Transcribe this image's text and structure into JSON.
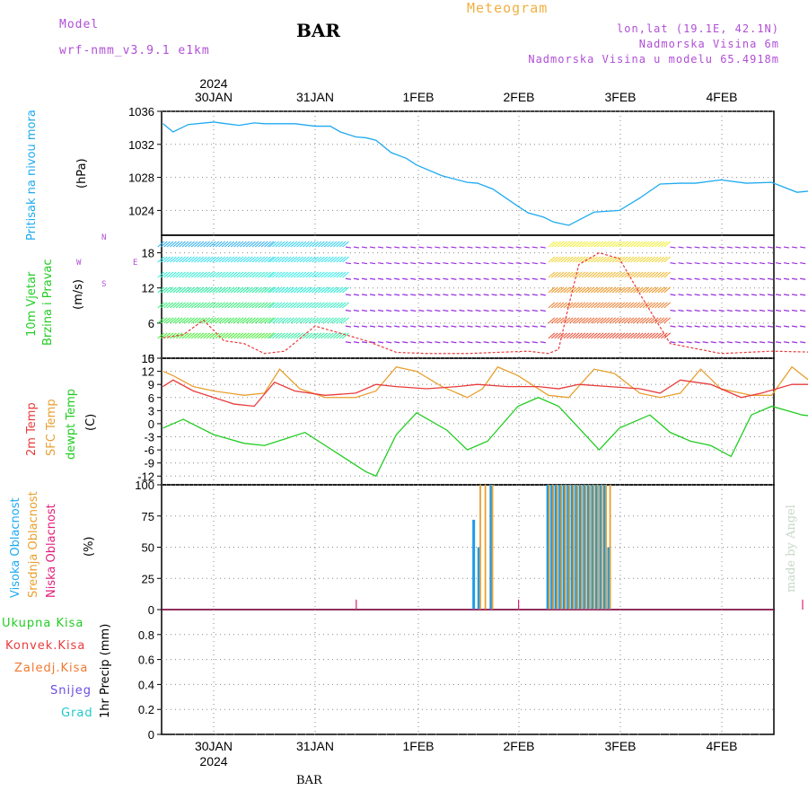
{
  "header": {
    "model_label": "Model",
    "model_name": "wrf-nmm_v3.9.1 e1km",
    "title": "BAR",
    "product": "Meteogram",
    "location": "lon,lat (19.1E, 42.1N)",
    "elevation": "Nadmorska Visina 6m",
    "model_elevation": "Nadmorska Visina u modelu 65.4918m"
  },
  "footer": {
    "station": "BAR",
    "credit": "made by Angel"
  },
  "colors": {
    "pressure": "#1eaaf0",
    "wind_label": "#22cc22",
    "temp2m": "#e83c3c",
    "sfc_temp": "#e8a030",
    "dewpoint": "#22cc22",
    "high_cloud": "#1e9be8",
    "mid_cloud": "#e8a030",
    "low_cloud": "#e0207a",
    "purple": "#b04fd6"
  },
  "chart_data": [
    {
      "type": "line",
      "title": "Pritisak na nivou mora",
      "ylabel": "(hPa)",
      "ylim": [
        1021,
        1036
      ],
      "yticks": [
        1024,
        1028,
        1032,
        1036
      ],
      "grid": true,
      "top_axis_year": "2024",
      "x_tick_labels": [
        "30JAN",
        "31JAN",
        "1FEB",
        "2FEB",
        "3FEB",
        "4FEB"
      ],
      "series": [
        {
          "name": "Pritisak na nivou mora",
          "x": [
            0,
            0.1,
            0.25,
            0.5,
            0.75,
            0.9,
            1.0,
            1.3,
            1.5,
            1.65,
            1.75,
            1.9,
            2.0,
            2.1,
            2.25,
            2.4,
            2.5,
            2.75,
            3.0,
            3.1,
            3.25,
            3.5,
            3.6,
            3.75,
            3.85,
            4.0,
            4.25,
            4.5,
            4.7,
            4.9,
            5.1,
            5.25,
            5.5,
            5.75,
            6.0,
            6.25,
            6.5,
            6.75,
            7.0
          ],
          "y": [
            1034.5,
            1033.5,
            1034.4,
            1034.7,
            1034.3,
            1034.6,
            1034.5,
            1034.5,
            1034.2,
            1034.2,
            1033.5,
            1032.9,
            1032.8,
            1032.5,
            1031.0,
            1030.3,
            1029.5,
            1028.2,
            1027.4,
            1027.3,
            1026.6,
            1024.5,
            1023.7,
            1023.2,
            1022.6,
            1022.2,
            1023.8,
            1024.0,
            1025.5,
            1027.2,
            1027.3,
            1027.3,
            1027.7,
            1027.3,
            1027.4,
            1026.2,
            1026.5,
            1026.9,
            1026.0
          ]
        }
      ]
    },
    {
      "type": "line",
      "title": "10m Vjetar Brzina i Pravac",
      "ylabel": "(m/s)",
      "ylim": [
        0,
        21
      ],
      "yticks": [
        0,
        6,
        12,
        18
      ],
      "grid": true,
      "compass_labels": [
        "N",
        "E",
        "S",
        "W"
      ],
      "series": [
        {
          "name": "10m Vjetar Brzina i Pravac",
          "x": [
            0,
            0.2,
            0.4,
            0.6,
            0.8,
            1.0,
            1.2,
            1.5,
            1.8,
            2.0,
            2.3,
            2.6,
            3.0,
            3.3,
            3.6,
            3.8,
            3.9,
            4.0,
            4.1,
            4.3,
            4.5,
            4.7,
            5.0,
            5.5,
            6.0,
            6.5,
            7.0
          ],
          "y": [
            3.5,
            4.0,
            6.5,
            3.0,
            2.5,
            0.8,
            1.2,
            5.5,
            4.0,
            3.0,
            1.0,
            0.8,
            0.8,
            1.0,
            1.2,
            0.8,
            1.5,
            9.0,
            16.0,
            18.0,
            17.0,
            11.0,
            2.5,
            0.8,
            1.2,
            1.0,
            1.5
          ]
        }
      ]
    },
    {
      "type": "line",
      "title": "2m Temp / SFC Temp / dewpt Temp",
      "ylabel": "(C)",
      "ylim": [
        -14,
        15
      ],
      "yticks": [
        -12,
        -9,
        -6,
        -3,
        0,
        3,
        6,
        9,
        12,
        15
      ],
      "grid": true,
      "series": [
        {
          "name": "2m Temp",
          "x": [
            0,
            0.1,
            0.3,
            0.5,
            0.7,
            0.9,
            1.1,
            1.3,
            1.6,
            1.9,
            2.1,
            2.3,
            2.6,
            2.9,
            3.1,
            3.4,
            3.7,
            3.9,
            4.1,
            4.4,
            4.7,
            4.9,
            5.1,
            5.4,
            5.7,
            5.9,
            6.2,
            6.5,
            6.8,
            7.0
          ],
          "y": [
            8.5,
            10.0,
            7.5,
            6.0,
            4.5,
            4.0,
            9.5,
            7.5,
            6.5,
            7.0,
            9.0,
            8.5,
            8.0,
            8.5,
            9.0,
            8.5,
            8.5,
            8.0,
            9.0,
            8.5,
            8.0,
            7.0,
            10.0,
            9.0,
            6.0,
            7.0,
            9.0,
            9.0,
            9.0,
            9.5
          ]
        },
        {
          "name": "SFC Temp",
          "x": [
            0,
            0.1,
            0.3,
            0.5,
            0.8,
            1.0,
            1.15,
            1.35,
            1.6,
            1.9,
            2.1,
            2.3,
            2.5,
            2.75,
            3.0,
            3.15,
            3.3,
            3.5,
            3.8,
            4.0,
            4.25,
            4.45,
            4.7,
            4.9,
            5.1,
            5.3,
            5.5,
            5.8,
            6.0,
            6.2,
            6.5,
            6.8,
            7.0
          ],
          "y": [
            12.0,
            11.0,
            8.5,
            7.5,
            6.5,
            7.0,
            12.5,
            8.0,
            6.0,
            6.0,
            7.5,
            13.0,
            12.0,
            8.5,
            6.0,
            8.0,
            13.0,
            11.0,
            6.5,
            6.0,
            12.5,
            11.5,
            7.0,
            6.0,
            7.0,
            12.5,
            8.0,
            6.5,
            6.5,
            13.0,
            7.5,
            6.0,
            13.5
          ]
        },
        {
          "name": "dewpt Temp",
          "x": [
            0,
            0.2,
            0.5,
            0.8,
            1.0,
            1.2,
            1.4,
            1.6,
            1.8,
            2.0,
            2.1,
            2.3,
            2.5,
            2.8,
            3.0,
            3.2,
            3.5,
            3.7,
            3.9,
            4.1,
            4.3,
            4.5,
            4.8,
            5.0,
            5.2,
            5.4,
            5.6,
            5.8,
            6.0,
            6.3,
            6.5,
            6.8,
            7.0
          ],
          "y": [
            -1.0,
            1.0,
            -2.5,
            -4.5,
            -5.0,
            -3.5,
            -2.0,
            -5.0,
            -8.0,
            -11.0,
            -12.0,
            -2.5,
            2.5,
            -1.5,
            -6.0,
            -4.0,
            4.0,
            6.0,
            4.0,
            -1.0,
            -6.0,
            -1.0,
            2.0,
            -2.0,
            -4.0,
            -5.0,
            -7.5,
            2.0,
            4.0,
            2.0,
            1.5,
            3.0,
            6.5
          ]
        }
      ]
    },
    {
      "type": "bar",
      "title": "Visoka Oblacnost / Srednja Oblacnost / Niska Oblacnost",
      "ylabel": "(%)",
      "ylim": [
        0,
        100
      ],
      "yticks": [
        0,
        25,
        50,
        75,
        100
      ],
      "grid": true,
      "series": [
        {
          "name": "Visoka Oblacnost",
          "x": [
            3.05,
            3.1,
            3.22,
            3.78,
            3.82,
            3.86,
            3.9,
            3.94,
            3.98,
            4.02,
            4.06,
            4.1,
            4.14,
            4.18,
            4.22,
            4.26,
            4.3,
            4.34,
            4.38
          ],
          "y": [
            72,
            50,
            100,
            100,
            100,
            100,
            100,
            100,
            100,
            100,
            100,
            100,
            100,
            100,
            100,
            100,
            100,
            100,
            50
          ]
        },
        {
          "name": "Srednja Oblacnost",
          "x": [
            3.12,
            3.17,
            3.24,
            3.8,
            3.84,
            3.88,
            3.92,
            3.96,
            4.0,
            4.04,
            4.08,
            4.12,
            4.16,
            4.2,
            4.24,
            4.28,
            4.32,
            4.36,
            4.4
          ],
          "y": [
            100,
            100,
            100,
            100,
            100,
            100,
            100,
            100,
            100,
            100,
            100,
            100,
            100,
            100,
            100,
            100,
            100,
            100,
            100
          ]
        },
        {
          "name": "Niska Oblacnost",
          "x": [
            1.9,
            3.5,
            6.3
          ],
          "y": [
            8,
            8,
            8
          ]
        }
      ]
    },
    {
      "type": "bar",
      "title": "1hr Precip",
      "ylabel": "1hr Precip (mm)",
      "ylim": [
        0,
        1.0
      ],
      "yticks": [
        0,
        0.2,
        0.4,
        0.6,
        0.8
      ],
      "grid": true,
      "bottom_axis_year": "2024",
      "x_tick_labels": [
        "30JAN",
        "31JAN",
        "1FEB",
        "2FEB",
        "3FEB",
        "4FEB"
      ],
      "legend": [
        "Ukupna Kisa",
        "Konvek.Kisa",
        "Zaledj.Kisa",
        "Snijeg",
        "Grad"
      ],
      "series": [
        {
          "name": "Ukupna Kisa",
          "x": [],
          "y": []
        }
      ]
    }
  ]
}
